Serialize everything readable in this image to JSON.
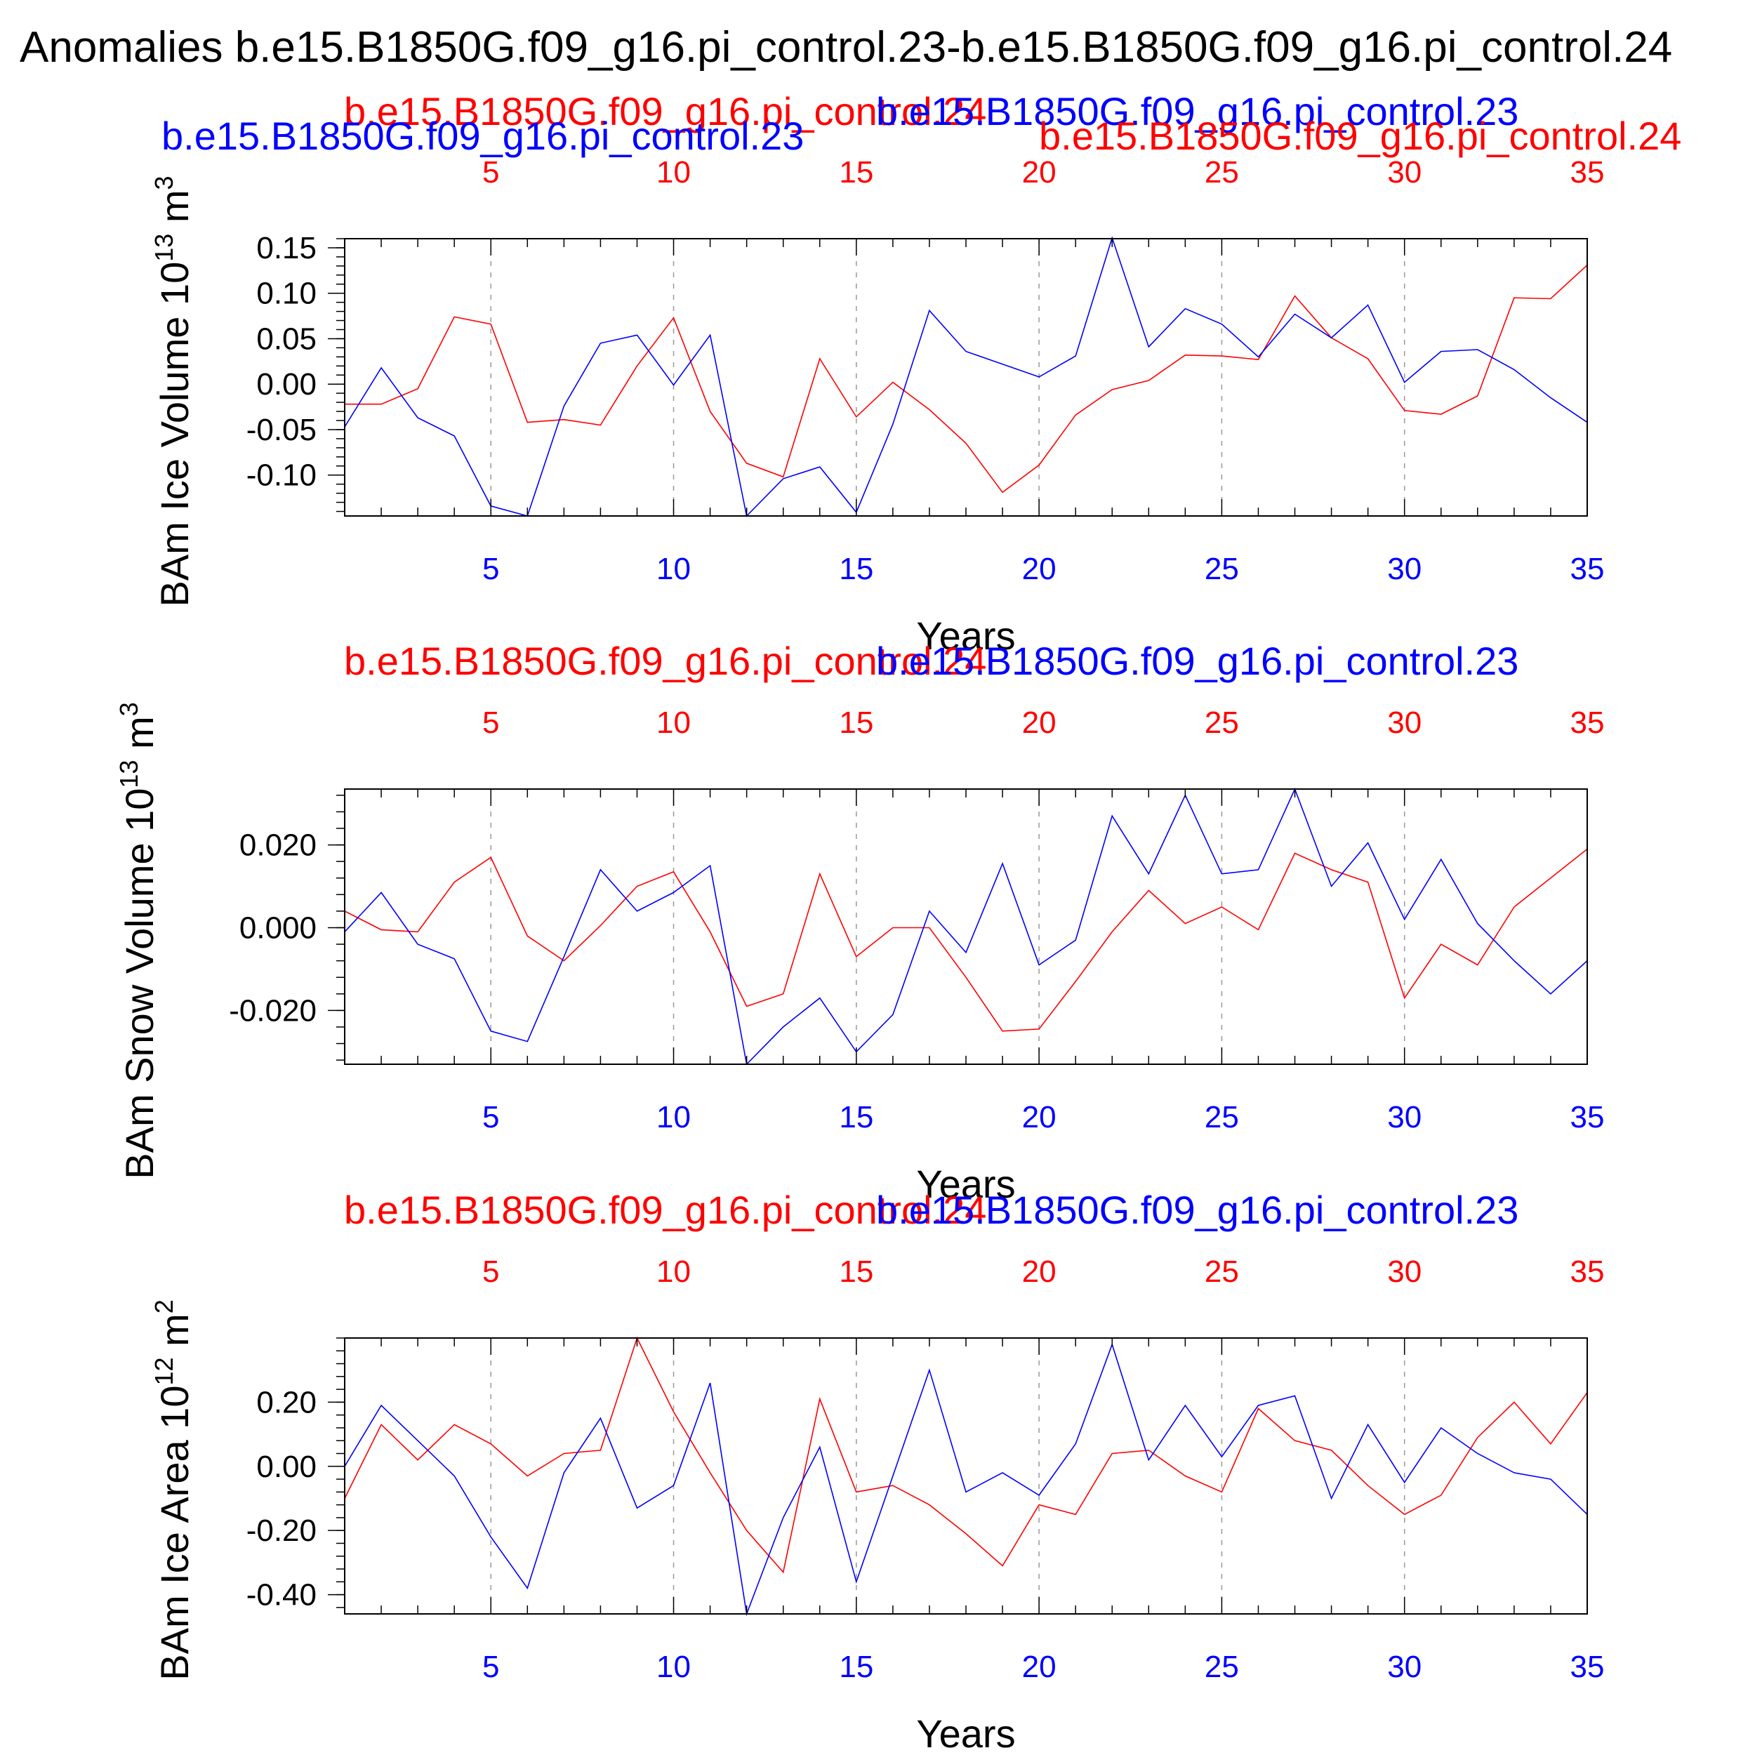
{
  "page": {
    "title": "Anomalies b.e15.B1850G.f09_g16.pi_control.23-b.e15.B1850G.f09_g16.pi_control.24",
    "colors": {
      "series_a": "#ff0000",
      "series_b": "#0000ff",
      "axis": "#000000",
      "grid": "#999999"
    }
  },
  "chart_data": [
    {
      "type": "line",
      "ylabel_main": "BAm Ice Volume 10",
      "ylabel_exp": "13",
      "ylabel_unit": " m",
      "ylabel_unit_exp": "3",
      "xlabel": "Years",
      "top_label_red": "b.e15.B1850G.f09_g16.pi_control.24",
      "top_label_blue": "b.e15.B1850G.f09_g16.pi_control.23",
      "top_label_red2": "b.e15.B1850G.f09_g16.pi_control.24",
      "top_label_blue2": "b.e15.B1850G.f09_g16.pi_control.23",
      "xlim": [
        1,
        35
      ],
      "ylim": [
        -0.145,
        0.16
      ],
      "xticks": [
        5,
        10,
        15,
        20,
        25,
        30,
        35
      ],
      "xtick_labels": [
        "5",
        "10",
        "15",
        "20",
        "25",
        "30",
        "35"
      ],
      "yticks": [
        -0.1,
        -0.05,
        0.0,
        0.05,
        0.1,
        0.15
      ],
      "ytick_labels": [
        "-0.10",
        "-0.05",
        "0.00",
        "0.05",
        "0.10",
        "0.15"
      ],
      "yminor_step": 0.01,
      "x": [
        1,
        2,
        3,
        4,
        5,
        6,
        7,
        8,
        9,
        10,
        11,
        12,
        13,
        14,
        15,
        16,
        17,
        18,
        19,
        20,
        21,
        22,
        23,
        24,
        25,
        26,
        27,
        28,
        29,
        30,
        31,
        32,
        33,
        34,
        35
      ],
      "series": [
        {
          "name": "b.e15.B1850G.f09_g16.pi_control.24",
          "color": "#ff0000",
          "values": [
            -0.022,
            -0.022,
            -0.005,
            0.074,
            0.066,
            -0.042,
            -0.039,
            -0.045,
            0.02,
            0.073,
            -0.03,
            -0.087,
            -0.102,
            0.028,
            -0.036,
            0.002,
            -0.028,
            -0.065,
            -0.119,
            -0.089,
            -0.034,
            -0.006,
            0.004,
            0.032,
            0.031,
            0.027,
            0.097,
            0.051,
            0.028,
            -0.029,
            -0.033,
            -0.013,
            0.095,
            0.094,
            0.131
          ]
        },
        {
          "name": "b.e15.B1850G.f09_g16.pi_control.23",
          "color": "#0000ff",
          "values": [
            -0.047,
            0.018,
            -0.037,
            -0.057,
            -0.134,
            -0.145,
            -0.024,
            0.045,
            0.054,
            -0.001,
            0.054,
            -0.145,
            -0.104,
            -0.091,
            -0.141,
            -0.044,
            0.081,
            0.036,
            0.022,
            0.008,
            0.031,
            0.161,
            0.041,
            0.083,
            0.066,
            0.03,
            0.077,
            0.051,
            0.087,
            0.002,
            0.036,
            0.038,
            0.016,
            -0.015,
            -0.042
          ]
        }
      ]
    },
    {
      "type": "line",
      "ylabel_main": "BAm Snow Volume 10",
      "ylabel_exp": "13",
      "ylabel_unit": " m",
      "ylabel_unit_exp": "3",
      "xlabel": "Years",
      "top_label_red": "b.e15.B1850G.f09_g16.pi_control.24",
      "top_label_blue": "b.e15.B1850G.f09_g16.pi_control.23",
      "xlim": [
        1,
        35
      ],
      "ylim": [
        -0.033,
        0.0335
      ],
      "xticks": [
        5,
        10,
        15,
        20,
        25,
        30,
        35
      ],
      "xtick_labels": [
        "5",
        "10",
        "15",
        "20",
        "25",
        "30",
        "35"
      ],
      "yticks": [
        -0.02,
        0.0,
        0.02
      ],
      "ytick_labels": [
        "-0.020",
        "0.000",
        "0.020"
      ],
      "yminor_step": 0.004,
      "x": [
        1,
        2,
        3,
        4,
        5,
        6,
        7,
        8,
        9,
        10,
        11,
        12,
        13,
        14,
        15,
        16,
        17,
        18,
        19,
        20,
        21,
        22,
        23,
        24,
        25,
        26,
        27,
        28,
        29,
        30,
        31,
        32,
        33,
        34,
        35
      ],
      "series": [
        {
          "name": "b.e15.B1850G.f09_g16.pi_control.24",
          "color": "#ff0000",
          "values": [
            0.004,
            -0.0005,
            -0.001,
            0.011,
            0.017,
            -0.002,
            -0.008,
            0.0005,
            0.01,
            0.0135,
            -0.001,
            -0.019,
            -0.016,
            0.013,
            -0.007,
            0.0,
            0.0,
            -0.012,
            -0.025,
            -0.0245,
            -0.013,
            -0.001,
            0.009,
            0.001,
            0.005,
            -0.0005,
            0.018,
            0.014,
            0.011,
            -0.017,
            -0.004,
            -0.009,
            0.005,
            0.012,
            0.019
          ]
        },
        {
          "name": "b.e15.B1850G.f09_g16.pi_control.23",
          "color": "#0000ff",
          "values": [
            -0.001,
            0.0085,
            -0.004,
            -0.0075,
            -0.025,
            -0.0275,
            -0.007,
            0.014,
            0.004,
            0.0085,
            0.015,
            -0.033,
            -0.024,
            -0.017,
            -0.03,
            -0.021,
            0.004,
            -0.006,
            0.0155,
            -0.009,
            -0.003,
            0.027,
            0.013,
            0.032,
            0.013,
            0.014,
            0.0335,
            0.01,
            0.0205,
            0.002,
            0.0165,
            0.001,
            -0.008,
            -0.016,
            -0.008
          ]
        }
      ]
    },
    {
      "type": "line",
      "ylabel_main": "BAm Ice Area 10",
      "ylabel_exp": "12",
      "ylabel_unit": " m",
      "ylabel_unit_exp": "2",
      "xlabel": "Years",
      "top_label_red": "b.e15.B1850G.f09_g16.pi_control.24",
      "top_label_blue": "b.e15.B1850G.f09_g16.pi_control.23",
      "xlim": [
        1,
        35
      ],
      "ylim": [
        -0.46,
        0.4
      ],
      "xticks": [
        5,
        10,
        15,
        20,
        25,
        30,
        35
      ],
      "xtick_labels": [
        "5",
        "10",
        "15",
        "20",
        "25",
        "30",
        "35"
      ],
      "yticks": [
        -0.4,
        -0.2,
        0.0,
        0.2
      ],
      "ytick_labels": [
        "-0.40",
        "-0.20",
        "0.00",
        "0.20"
      ],
      "yminor_step": 0.04,
      "x": [
        1,
        2,
        3,
        4,
        5,
        6,
        7,
        8,
        9,
        10,
        11,
        12,
        13,
        14,
        15,
        16,
        17,
        18,
        19,
        20,
        21,
        22,
        23,
        24,
        25,
        26,
        27,
        28,
        29,
        30,
        31,
        32,
        33,
        34,
        35
      ],
      "series": [
        {
          "name": "b.e15.B1850G.f09_g16.pi_control.24",
          "color": "#ff0000",
          "values": [
            -0.1,
            0.13,
            0.02,
            0.13,
            0.07,
            -0.03,
            0.04,
            0.05,
            0.4,
            0.17,
            -0.02,
            -0.2,
            -0.33,
            0.21,
            -0.08,
            -0.06,
            -0.12,
            -0.21,
            -0.31,
            -0.12,
            -0.15,
            0.04,
            0.05,
            -0.03,
            -0.08,
            0.18,
            0.08,
            0.05,
            -0.06,
            -0.15,
            -0.09,
            0.09,
            0.2,
            0.07,
            0.23
          ]
        },
        {
          "name": "b.e15.B1850G.f09_g16.pi_control.23",
          "color": "#0000ff",
          "values": [
            0.0,
            0.19,
            0.08,
            -0.03,
            -0.22,
            -0.38,
            -0.02,
            0.15,
            -0.13,
            -0.06,
            0.26,
            -0.46,
            -0.16,
            0.06,
            -0.36,
            -0.03,
            0.3,
            -0.08,
            -0.02,
            -0.09,
            0.07,
            0.38,
            0.02,
            0.19,
            0.03,
            0.19,
            0.22,
            -0.1,
            0.13,
            -0.05,
            0.12,
            0.04,
            -0.02,
            -0.04,
            -0.15
          ]
        }
      ]
    }
  ]
}
